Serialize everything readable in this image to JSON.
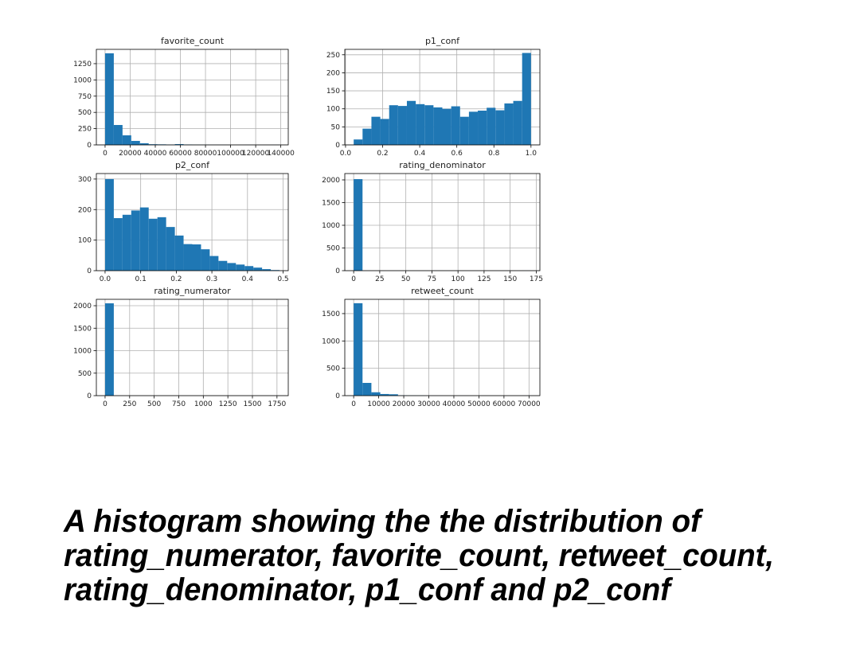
{
  "chart_data": [
    {
      "type": "histogram",
      "title": "favorite_count",
      "color": "#1f77b4",
      "grid": true,
      "bins": [
        0,
        6950,
        13900,
        20850,
        27800,
        34750,
        41700,
        48650,
        55600,
        62550,
        69500,
        76450,
        83400,
        90350,
        97300,
        104250,
        111200,
        118150,
        125100,
        132050,
        139000
      ],
      "values": [
        1409,
        306,
        147,
        61,
        25,
        10,
        8,
        5,
        12,
        6,
        3,
        2,
        1,
        1,
        0,
        0,
        1,
        0,
        0,
        1
      ],
      "xlim": [
        -6950,
        145950
      ],
      "xticks": [
        0,
        20000,
        40000,
        60000,
        80000,
        100000,
        120000,
        140000
      ],
      "ylim": [
        0,
        1470
      ],
      "yticks": [
        0,
        250,
        500,
        750,
        1000,
        1250
      ]
    },
    {
      "type": "histogram",
      "title": "p1_conf",
      "color": "#1f77b4",
      "grid": true,
      "bins": [
        0.044,
        0.0918,
        0.1396,
        0.1874,
        0.2352,
        0.283,
        0.3308,
        0.3786,
        0.4264,
        0.4742,
        0.522,
        0.5698,
        0.6176,
        0.6654,
        0.7132,
        0.761,
        0.8088,
        0.8566,
        0.9044,
        0.9522,
        1.0
      ],
      "values": [
        15,
        45,
        78,
        72,
        110,
        108,
        122,
        113,
        110,
        104,
        100,
        107,
        78,
        92,
        95,
        103,
        96,
        115,
        122,
        255
      ],
      "xlim": [
        -0.004,
        1.048
      ],
      "xticks": [
        {
          "value": 0,
          "label": "0.0"
        },
        0.2,
        0.4,
        0.6,
        0.8,
        {
          "value": 1,
          "label": "1.0"
        }
      ],
      "ylim": [
        0,
        265
      ],
      "yticks": [
        0,
        50,
        100,
        150,
        200,
        250
      ]
    },
    {
      "type": "histogram",
      "title": "p2_conf",
      "color": "#1f77b4",
      "grid": true,
      "bins": [
        0,
        0.0245,
        0.049,
        0.0735,
        0.098,
        0.1225,
        0.147,
        0.1715,
        0.196,
        0.2205,
        0.245,
        0.2695,
        0.294,
        0.3185,
        0.343,
        0.3675,
        0.392,
        0.4165,
        0.441,
        0.4655,
        0.49
      ],
      "values": [
        300,
        172,
        183,
        197,
        207,
        170,
        175,
        143,
        115,
        87,
        86,
        70,
        48,
        32,
        25,
        20,
        15,
        10,
        5,
        2
      ],
      "xlim": [
        -0.0245,
        0.5145
      ],
      "xticks": [
        {
          "value": 0,
          "label": "0.0"
        },
        0.1,
        0.2,
        0.3,
        0.4,
        0.5
      ],
      "ylim": [
        0,
        318
      ],
      "yticks": [
        0,
        100,
        200,
        300
      ]
    },
    {
      "type": "histogram",
      "title": "rating_denominator",
      "color": "#1f77b4",
      "grid": true,
      "bins": [
        0,
        8.5,
        17,
        25.5,
        34,
        42.5,
        51,
        59.5,
        68,
        76.5,
        85,
        93.5,
        102,
        110.5,
        119,
        127.5,
        136,
        144.5,
        153,
        161.5,
        170
      ],
      "values": [
        2017,
        1,
        0,
        0,
        0,
        0,
        0,
        0,
        0,
        1,
        0,
        0,
        0,
        0,
        0,
        0,
        0,
        0,
        0,
        1
      ],
      "xlim": [
        -8.5,
        178.5
      ],
      "xticks": [
        0,
        25,
        50,
        75,
        100,
        125,
        150,
        175
      ],
      "ylim": [
        0,
        2140
      ],
      "yticks": [
        0,
        500,
        1000,
        1500,
        2000
      ]
    },
    {
      "type": "histogram",
      "title": "rating_numerator",
      "color": "#1f77b4",
      "grid": true,
      "bins": [
        0,
        88.8,
        177.6,
        266.4,
        355.2,
        444,
        532.8,
        621.6,
        710.4,
        799.2,
        888,
        976.8,
        1065.6,
        1154.4,
        1243.2,
        1332,
        1420.8,
        1509.6,
        1598.4,
        1687.2,
        1776
      ],
      "values": [
        2053,
        1,
        0,
        0,
        0,
        0,
        0,
        0,
        0,
        0,
        0,
        0,
        0,
        0,
        0,
        0,
        0,
        0,
        0,
        1
      ],
      "xlim": [
        -88.8,
        1864.8
      ],
      "xticks": [
        0,
        250,
        500,
        750,
        1000,
        1250,
        1500,
        1750
      ],
      "ylim": [
        0,
        2142
      ],
      "yticks": [
        0,
        500,
        1000,
        1500,
        2000
      ]
    },
    {
      "type": "histogram",
      "title": "retweet_count",
      "color": "#1f77b4",
      "grid": true,
      "bins": [
        0,
        3540,
        7080,
        10620,
        14160,
        17700,
        21240,
        24780,
        28320,
        31860,
        35400,
        38940,
        42480,
        46020,
        49560,
        53100,
        56640,
        60180,
        63720,
        67260,
        70800
      ],
      "values": [
        1690,
        233,
        62,
        30,
        25,
        5,
        3,
        2,
        1,
        1,
        0,
        0,
        1,
        0,
        0,
        0,
        0,
        0,
        0,
        1
      ],
      "xlim": [
        -3540,
        74340
      ],
      "xticks": [
        0,
        10000,
        20000,
        30000,
        40000,
        50000,
        60000,
        70000
      ],
      "ylim": [
        0,
        1761
      ],
      "yticks": [
        0,
        500,
        1000,
        1500
      ]
    }
  ],
  "caption": [
    "A histogram showing the the distribution of",
    "rating_numerator, favorite_count, retweet_count,",
    "rating_denominator, p1_conf and p2_conf"
  ]
}
